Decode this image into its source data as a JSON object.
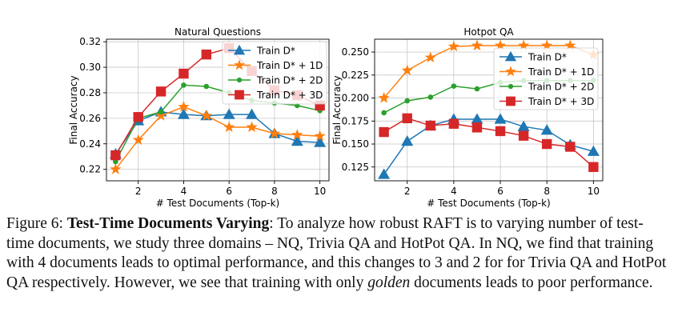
{
  "caption": {
    "figure_label": "Figure 6:",
    "title": "Test-Time Documents Varying",
    "text_1": ": To analyze how robust RAFT is to varying number of test-time documents, we study three domains – NQ, Trivia QA and HotPot QA. In NQ, we find that training with 4 documents leads to optimal performance, and this changes to 3 and 2 for for Trivia QA and HotPot QA respectively. However, we see that training with only ",
    "emphasis": "golden",
    "text_2": " documents leads to poor performance."
  },
  "colors": {
    "Train D*": "#1f77b4",
    "Train D* + 1D": "#ff7f0e",
    "Train D* + 2D": "#2ca02c",
    "Train D* + 3D": "#d62728"
  },
  "chart_data": [
    {
      "type": "line",
      "title": "Natural Questions",
      "xlabel": "# Test Documents (Top-k)",
      "ylabel": "Final Accuracy",
      "x": [
        1,
        2,
        3,
        4,
        5,
        6,
        7,
        8,
        9,
        10
      ],
      "xlim": [
        0.6,
        10.4
      ],
      "ylim": [
        0.211,
        0.322
      ],
      "xticks": [
        2,
        4,
        6,
        8,
        10
      ],
      "yticks": [
        0.22,
        0.24,
        0.26,
        0.28,
        0.3,
        0.32
      ],
      "ytick_labels": [
        "0.22",
        "0.24",
        "0.26",
        "0.28",
        "0.30",
        "0.32"
      ],
      "grid": true,
      "legend_position": "upper-right",
      "series": [
        {
          "name": "Train D*",
          "marker": "triangle",
          "values": [
            0.232,
            0.258,
            0.265,
            0.263,
            0.262,
            0.263,
            0.263,
            0.248,
            0.242,
            0.241
          ]
        },
        {
          "name": "Train D* + 1D",
          "marker": "star",
          "values": [
            0.22,
            0.243,
            0.262,
            0.269,
            0.262,
            0.253,
            0.253,
            0.248,
            0.247,
            0.246
          ]
        },
        {
          "name": "Train D* + 2D",
          "marker": "circle",
          "values": [
            0.226,
            0.26,
            0.265,
            0.286,
            0.285,
            0.28,
            0.274,
            0.272,
            0.27,
            0.266
          ]
        },
        {
          "name": "Train D* + 3D",
          "marker": "square",
          "values": [
            0.231,
            0.261,
            0.281,
            0.295,
            0.31,
            0.315,
            0.297,
            0.282,
            0.278,
            0.27
          ]
        }
      ]
    },
    {
      "type": "line",
      "title": "Hotpot QA",
      "xlabel": "# Test Documents (Top-k)",
      "ylabel": "Final Accuracy",
      "x": [
        1,
        2,
        3,
        4,
        5,
        6,
        7,
        8,
        9,
        10
      ],
      "xlim": [
        0.6,
        10.4
      ],
      "ylim": [
        0.11,
        0.264
      ],
      "xticks": [
        2,
        4,
        6,
        8,
        10
      ],
      "yticks": [
        0.125,
        0.15,
        0.175,
        0.2,
        0.225,
        0.25
      ],
      "ytick_labels": [
        "0.125",
        "0.150",
        "0.175",
        "0.200",
        "0.225",
        "0.250"
      ],
      "grid": true,
      "legend_position": "right",
      "series": [
        {
          "name": "Train D*",
          "marker": "triangle",
          "values": [
            0.117,
            0.153,
            0.17,
            0.177,
            0.177,
            0.177,
            0.169,
            0.165,
            0.149,
            0.142
          ]
        },
        {
          "name": "Train D* + 1D",
          "marker": "star",
          "values": [
            0.2,
            0.23,
            0.244,
            0.256,
            0.257,
            0.257,
            0.257,
            0.257,
            0.257,
            0.247
          ]
        },
        {
          "name": "Train D* + 2D",
          "marker": "circle",
          "values": [
            0.184,
            0.197,
            0.201,
            0.213,
            0.21,
            0.217,
            0.219,
            0.219,
            0.219,
            0.219
          ]
        },
        {
          "name": "Train D* + 3D",
          "marker": "square",
          "values": [
            0.163,
            0.178,
            0.17,
            0.172,
            0.168,
            0.164,
            0.159,
            0.15,
            0.147,
            0.125
          ]
        }
      ]
    }
  ]
}
